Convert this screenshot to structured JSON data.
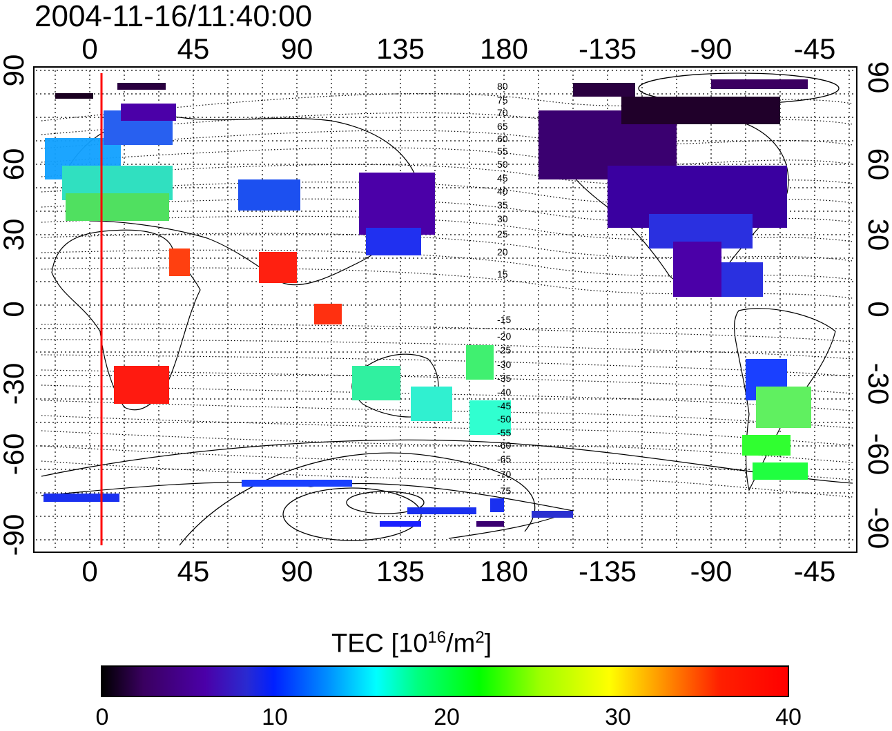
{
  "title": "2004-11-16/11:40:00",
  "x_ticks": [
    "0",
    "45",
    "90",
    "135",
    "180",
    "-135",
    "-90",
    "-45"
  ],
  "y_ticks": [
    "90",
    "60",
    "30",
    "0",
    "-30",
    "-60",
    "-90"
  ],
  "contour_labels_north": [
    "80",
    "75",
    "70",
    "65",
    "60",
    "55",
    "50",
    "45",
    "40",
    "35",
    "30",
    "25",
    "20",
    "15"
  ],
  "contour_labels_south": [
    "-15",
    "-20",
    "-25",
    "-30",
    "-35",
    "-40",
    "-45",
    "-50",
    "-55",
    "-60",
    "-65",
    "-70",
    "-75"
  ],
  "colorbar": {
    "title_prefix": "TEC  [10",
    "title_exp1": "16",
    "title_mid": "/m",
    "title_exp2": "2",
    "title_suffix": "]",
    "labels": [
      "0",
      "10",
      "20",
      "30",
      "40"
    ],
    "range": [
      0,
      40
    ]
  },
  "colors": {
    "marker_line": "#ff0000",
    "low": "#3a0060",
    "mid": "#00ffff",
    "high": "#ff0000"
  }
}
